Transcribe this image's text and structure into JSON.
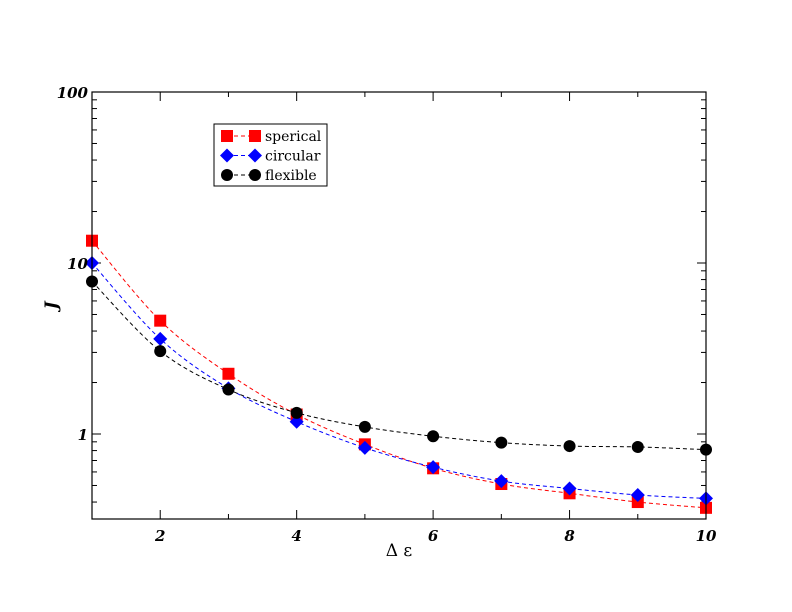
{
  "chart_data": {
    "type": "line",
    "title": "",
    "xlabel": "Δ ε",
    "ylabel": "J",
    "xlim": [
      1,
      10
    ],
    "ylim": [
      0.35,
      100
    ],
    "yscale": "log",
    "grid": false,
    "legend_position": "top-left",
    "x_ticks": [
      {
        "value": 2,
        "label": "2"
      },
      {
        "value": 4,
        "label": "4"
      },
      {
        "value": 6,
        "label": "6"
      },
      {
        "value": 8,
        "label": "8"
      },
      {
        "value": 10,
        "label": "10"
      }
    ],
    "y_ticks": [
      {
        "value": 1,
        "label": "1"
      },
      {
        "value": 10,
        "label": "10"
      },
      {
        "value": 100,
        "label": "100"
      }
    ],
    "x": [
      1,
      2,
      3,
      4,
      5,
      6,
      7,
      8,
      9,
      10
    ],
    "series": [
      {
        "name": "sperical",
        "color": "#ff0000",
        "marker": "square",
        "values": [
          13.5,
          4.6,
          2.25,
          1.3,
          0.87,
          0.63,
          0.51,
          0.45,
          0.4,
          0.37
        ]
      },
      {
        "name": "circular",
        "color": "#0000ff",
        "marker": "diamond",
        "values": [
          10.0,
          3.6,
          1.85,
          1.18,
          0.83,
          0.64,
          0.53,
          0.48,
          0.44,
          0.42
        ]
      },
      {
        "name": "flexible",
        "color": "#000000",
        "marker": "circle",
        "values": [
          7.8,
          3.05,
          1.82,
          1.33,
          1.1,
          0.97,
          0.89,
          0.85,
          0.84,
          0.81
        ]
      }
    ]
  }
}
